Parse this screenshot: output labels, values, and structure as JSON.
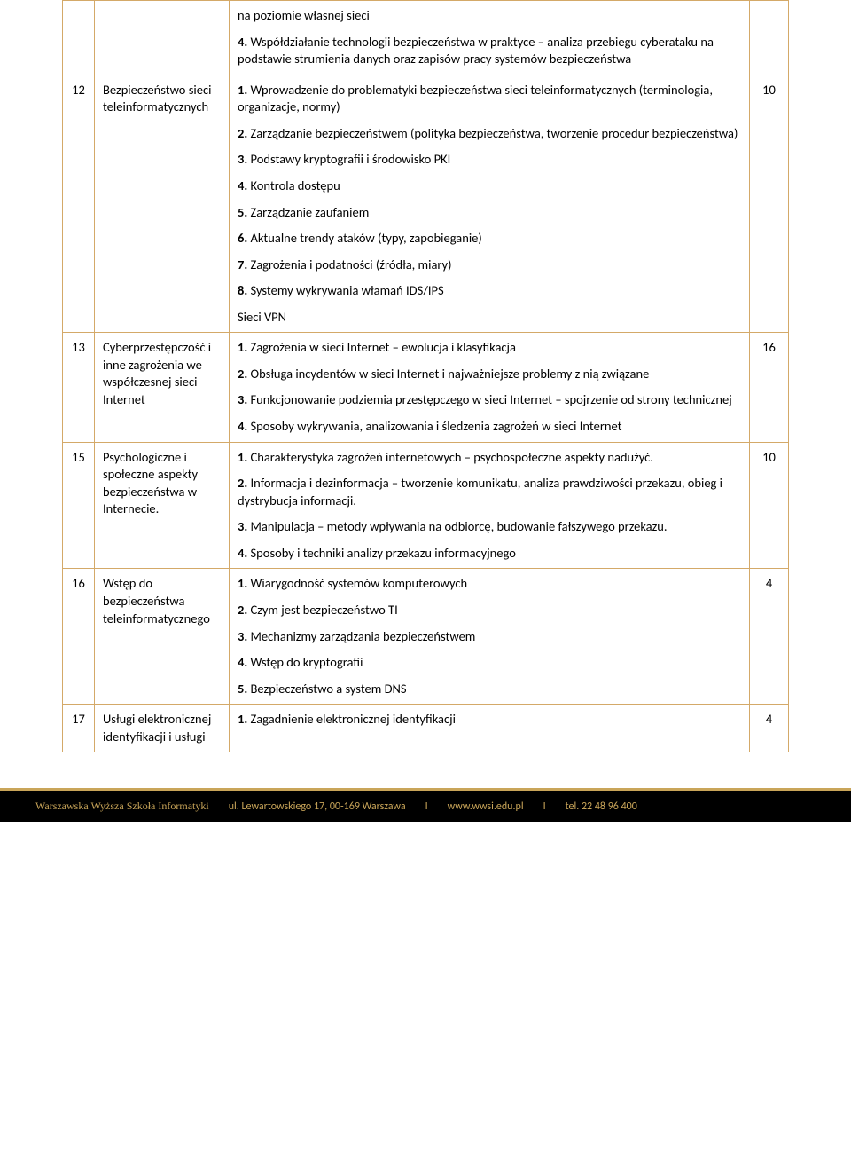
{
  "rows": [
    {
      "num": "",
      "title": "",
      "hours": "",
      "items": [
        {
          "pre": "",
          "text": "na poziomie własnej sieci"
        },
        {
          "pre": "4.",
          "text": " Współdziałanie technologii bezpieczeństwa w praktyce – analiza przebiegu cyberataku na podstawie strumienia danych oraz zapisów pracy systemów bezpieczeństwa"
        }
      ]
    },
    {
      "num": "12",
      "title": "Bezpieczeństwo sieci teleinformatycznych",
      "hours": "10",
      "items": [
        {
          "pre": "1.",
          "text": " Wprowadzenie do problematyki bezpieczeństwa sieci teleinformatycznych (terminologia, organizacje, normy)"
        },
        {
          "pre": "2.",
          "text": " Zarządzanie bezpieczeństwem (polityka bezpieczeństwa, tworzenie procedur bezpieczeństwa)"
        },
        {
          "pre": "3.",
          "text": " Podstawy kryptografii i środowisko PKI"
        },
        {
          "pre": "4.",
          "text": " Kontrola dostępu"
        },
        {
          "pre": "5.",
          "text": " Zarządzanie zaufaniem"
        },
        {
          "pre": "6.",
          "text": " Aktualne trendy ataków (typy, zapobieganie)"
        },
        {
          "pre": "7.",
          "text": " Zagrożenia i podatności (źródła, miary)"
        },
        {
          "pre": "8.",
          "text": " Systemy wykrywania włamań IDS/IPS"
        },
        {
          "pre": "",
          "text": "Sieci VPN"
        }
      ]
    },
    {
      "num": "13",
      "title": "Cyberprzestępczość i inne zagrożenia we współczesnej sieci Internet",
      "hours": "16",
      "items": [
        {
          "pre": "1.",
          "text": " Zagrożenia w sieci Internet – ewolucja i klasyfikacja"
        },
        {
          "pre": "2.",
          "text": " Obsługa incydentów w sieci Internet i najważniejsze problemy z nią związane"
        },
        {
          "pre": "3.",
          "text": " Funkcjonowanie podziemia przestępczego w sieci Internet – spojrzenie od strony technicznej"
        },
        {
          "pre": "4.",
          "text": " Sposoby wykrywania, analizowania i śledzenia zagrożeń w sieci Internet"
        }
      ]
    },
    {
      "num": "15",
      "title": "Psychologiczne i społeczne aspekty bezpieczeństwa w Internecie.",
      "hours": "10",
      "items": [
        {
          "pre": "1.",
          "text": " Charakterystyka zagrożeń internetowych – psychospołeczne aspekty nadużyć."
        },
        {
          "pre": "2.",
          "text": " Informacja i dezinformacja – tworzenie komunikatu, analiza prawdziwości przekazu, obieg i dystrybucja informacji."
        },
        {
          "pre": "3.",
          "text": " Manipulacja – metody wpływania na odbiorcę, budowanie fałszywego przekazu."
        },
        {
          "pre": "4.",
          "text": " Sposoby i techniki analizy przekazu informacyjnego"
        }
      ]
    },
    {
      "num": "16",
      "title": "Wstęp do bezpieczeństwa teleinformatycznego",
      "hours": "4",
      "items": [
        {
          "pre": "1.",
          "text": " Wiarygodność systemów komputerowych"
        },
        {
          "pre": "2.",
          "text": " Czym jest bezpieczeństwo TI"
        },
        {
          "pre": "3.",
          "text": " Mechanizmy zarządzania bezpieczeństwem"
        },
        {
          "pre": "4.",
          "text": " Wstęp do kryptografii"
        },
        {
          "pre": "5.",
          "text": " Bezpieczeństwo a system DNS"
        }
      ]
    },
    {
      "num": "17",
      "title": "Usługi elektronicznej identyfikacji i usługi",
      "hours": "4",
      "items": [
        {
          "pre": "1.",
          "text": " Zagadnienie elektronicznej identyfikacji"
        }
      ]
    }
  ],
  "footer": {
    "org": "Warszawska Wyższa Szkoła Informatyki",
    "addr": "ul. Lewartowskiego 17, 00-169 Warszawa",
    "url": "www.wwsi.edu.pl",
    "tel": "tel. 22 48 96 400"
  }
}
